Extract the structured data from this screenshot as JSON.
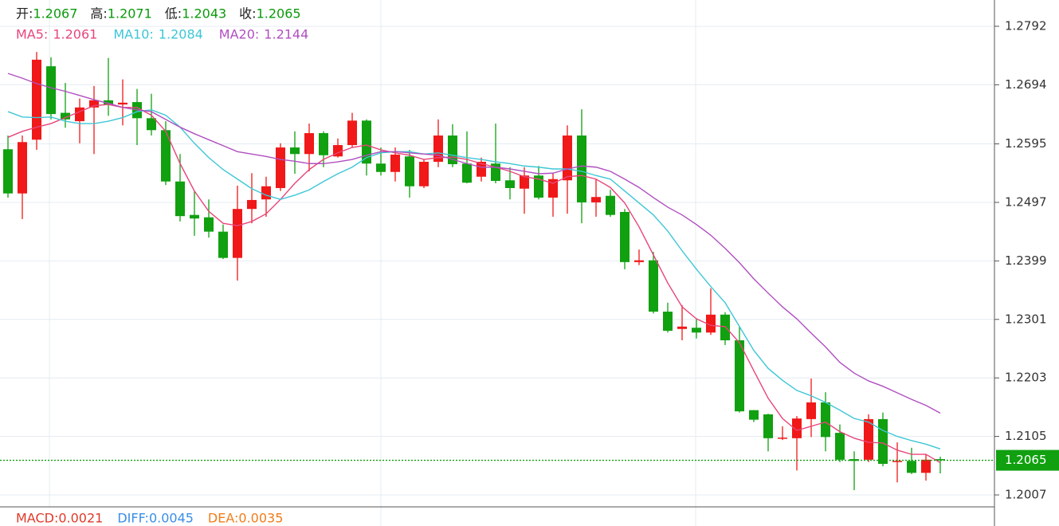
{
  "chart_data": {
    "type": "candlestick",
    "open": [
      1.2586,
      1.2512,
      1.2602,
      1.2725,
      1.2647,
      1.2633,
      1.2656,
      1.2668,
      1.2661,
      1.2665,
      1.2638,
      1.2618,
      1.2532,
      1.2476,
      1.2472,
      1.2448,
      1.2404,
      1.2486,
      1.2502,
      1.2521,
      1.2589,
      1.2578,
      1.2613,
      1.2574,
      1.2593,
      1.2634,
      1.2562,
      1.2548,
      1.2574,
      1.2524,
      1.2565,
      1.2609,
      1.2562,
      1.254,
      1.2562,
      1.2534,
      1.252,
      1.2542,
      1.2505,
      1.2534,
      1.2609,
      1.2497,
      1.2508,
      1.2481,
      1.2397,
      1.24,
      1.2314,
      1.2285,
      1.2287,
      1.2279,
      1.2309,
      1.2266,
      1.2149,
      1.2142,
      1.2102,
      1.2102,
      1.2134,
      1.2162,
      1.2111,
      1.2067,
      1.2066,
      1.2134,
      1.2062,
      1.2064,
      1.2044,
      1.2067
    ],
    "high": [
      1.2609,
      1.2609,
      1.2749,
      1.274,
      1.2697,
      1.2671,
      1.2692,
      1.2739,
      1.2703,
      1.2687,
      1.2679,
      1.2633,
      1.2578,
      1.2516,
      1.2502,
      1.246,
      1.2525,
      1.2546,
      1.254,
      1.2596,
      1.2616,
      1.2629,
      1.2616,
      1.2604,
      1.2647,
      1.2636,
      1.2589,
      1.2589,
      1.2585,
      1.2569,
      1.2636,
      1.2628,
      1.2616,
      1.2572,
      1.2629,
      1.2556,
      1.2556,
      1.2558,
      1.2545,
      1.2626,
      1.2653,
      1.2536,
      1.2518,
      1.2486,
      1.2418,
      1.2414,
      1.2329,
      1.2325,
      1.2302,
      1.2353,
      1.2313,
      1.2289,
      1.2149,
      1.2143,
      1.2122,
      1.2139,
      1.2202,
      1.2179,
      1.2125,
      1.208,
      1.2142,
      1.2145,
      1.2095,
      1.2086,
      1.2075,
      1.2071
    ],
    "low": [
      1.2505,
      1.2469,
      1.2585,
      1.2636,
      1.2622,
      1.2596,
      1.2578,
      1.2642,
      1.2626,
      1.2593,
      1.2609,
      1.2526,
      1.2465,
      1.2441,
      1.2438,
      1.2402,
      1.2366,
      1.2462,
      1.2473,
      1.2516,
      1.2545,
      1.2549,
      1.2556,
      1.2572,
      1.2589,
      1.2542,
      1.2542,
      1.2532,
      1.2505,
      1.2521,
      1.2556,
      1.2556,
      1.2529,
      1.2532,
      1.2529,
      1.2502,
      1.2478,
      1.2502,
      1.2473,
      1.2478,
      1.2462,
      1.2473,
      1.2473,
      1.2385,
      1.2392,
      1.2311,
      1.2279,
      1.2266,
      1.2269,
      1.2275,
      1.2258,
      1.2145,
      1.2129,
      1.208,
      1.2099,
      1.2048,
      1.2104,
      1.208,
      1.2062,
      1.2015,
      1.2062,
      1.2055,
      1.2028,
      1.2042,
      1.2031,
      1.2043
    ],
    "close": [
      1.2512,
      1.2598,
      1.2736,
      1.2645,
      1.2636,
      1.2656,
      1.2668,
      1.2661,
      1.2664,
      1.2638,
      1.2618,
      1.2532,
      1.2474,
      1.247,
      1.2448,
      1.2404,
      1.2486,
      1.2501,
      1.2524,
      1.2589,
      1.2578,
      1.2613,
      1.2576,
      1.2593,
      1.2634,
      1.2562,
      1.2548,
      1.2577,
      1.2524,
      1.2565,
      1.2609,
      1.2561,
      1.253,
      1.2565,
      1.2533,
      1.2521,
      1.2542,
      1.2505,
      1.2536,
      1.2609,
      1.2497,
      1.2506,
      1.2476,
      1.2397,
      1.24,
      1.2314,
      1.2282,
      1.2289,
      1.2279,
      1.2309,
      1.2266,
      1.2147,
      1.2133,
      1.2102,
      1.2103,
      1.2135,
      1.2162,
      1.2104,
      1.2066,
      1.2064,
      1.2134,
      1.2059,
      1.2064,
      1.2044,
      1.2066,
      1.2065
    ],
    "up_color": "#f01818",
    "down_color": "#10a010",
    "series": [
      {
        "name": "MA5:",
        "value": 1.2061,
        "color": "#e8457a",
        "values": [
          1.2606,
          1.2616,
          1.2623,
          1.2629,
          1.2639,
          1.2649,
          1.2659,
          1.2661,
          1.2656,
          1.2656,
          1.2643,
          1.2616,
          1.2562,
          1.2516,
          1.2482,
          1.2462,
          1.2458,
          1.2465,
          1.2478,
          1.2502,
          1.2529,
          1.2552,
          1.2569,
          1.258,
          1.2589,
          1.2593,
          1.2585,
          1.258,
          1.2576,
          1.2569,
          1.2572,
          1.2573,
          1.2569,
          1.2562,
          1.2556,
          1.2549,
          1.254,
          1.2536,
          1.2529,
          1.254,
          1.2542,
          1.2536,
          1.2522,
          1.2496,
          1.2456,
          1.2409,
          1.2362,
          1.2322,
          1.2302,
          1.2291,
          1.2289,
          1.2262,
          1.2215,
          1.2169,
          1.2135,
          1.2115,
          1.2122,
          1.2129,
          1.2113,
          1.2102,
          1.2095,
          1.2094,
          1.2082,
          1.2075,
          1.2075,
          1.2061
        ]
      },
      {
        "name": "MA10:",
        "value": 1.2084,
        "color": "#3ec6d6",
        "values": [
          1.2649,
          1.264,
          1.2639,
          1.264,
          1.2633,
          1.2629,
          1.2629,
          1.2633,
          1.2639,
          1.2649,
          1.2652,
          1.2643,
          1.2623,
          1.2596,
          1.2572,
          1.2552,
          1.2536,
          1.252,
          1.2509,
          1.2502,
          1.2509,
          1.2518,
          1.2532,
          1.2545,
          1.2556,
          1.2572,
          1.258,
          1.2582,
          1.2582,
          1.2578,
          1.258,
          1.2576,
          1.2572,
          1.2569,
          1.2565,
          1.2562,
          1.2558,
          1.2556,
          1.2553,
          1.2553,
          1.2549,
          1.2542,
          1.2536,
          1.2516,
          1.2496,
          1.2476,
          1.2449,
          1.2416,
          1.2385,
          1.2356,
          1.2329,
          1.2289,
          1.2249,
          1.2219,
          1.2199,
          1.2182,
          1.2173,
          1.2162,
          1.2149,
          1.2135,
          1.2129,
          1.2115,
          1.2105,
          1.2098,
          1.2092,
          1.2084
        ]
      },
      {
        "name": "MA20:",
        "value": 1.2144,
        "color": "#b04fc0",
        "values": [
          1.2713,
          1.2705,
          1.2696,
          1.2689,
          1.2683,
          1.2676,
          1.2669,
          1.2663,
          1.2656,
          1.2652,
          1.2649,
          1.2636,
          1.2623,
          1.2612,
          1.2602,
          1.2592,
          1.2582,
          1.2578,
          1.2574,
          1.2569,
          1.2566,
          1.2562,
          1.2562,
          1.2565,
          1.2569,
          1.2576,
          1.2582,
          1.2582,
          1.258,
          1.2578,
          1.2576,
          1.2569,
          1.2562,
          1.2556,
          1.2556,
          1.2553,
          1.2549,
          1.2545,
          1.2546,
          1.2553,
          1.2558,
          1.2556,
          1.2549,
          1.2536,
          1.2522,
          1.2505,
          1.2489,
          1.2476,
          1.246,
          1.2442,
          1.242,
          1.2396,
          1.2369,
          1.2345,
          1.2322,
          1.2302,
          1.2278,
          1.2255,
          1.2229,
          1.2211,
          1.2198,
          1.2189,
          1.2178,
          1.2167,
          1.2157,
          1.2144
        ]
      }
    ],
    "quote": [
      {
        "label": "开:",
        "value": 1.2067
      },
      {
        "label": "高:",
        "value": 1.2071
      },
      {
        "label": "低:",
        "value": 1.2043
      },
      {
        "label": "收:",
        "value": 1.2065
      }
    ],
    "quote_color": "#0a9a0a",
    "last_price": 1.2065,
    "last_price_color": "#10a010",
    "indicator": [
      {
        "label": "MACD:",
        "value": 0.0021,
        "color": "#e03a2a"
      },
      {
        "label": "DIFF:",
        "value": 0.0045,
        "color": "#3a8ee6"
      },
      {
        "label": "DEA:",
        "value": 0.0035,
        "color": "#f07d1a"
      }
    ],
    "ylim": [
      1.1987,
      1.2836
    ],
    "yticks": [
      1.2007,
      1.2105,
      1.2203,
      1.2301,
      1.2399,
      1.2497,
      1.2595,
      1.2694,
      1.2792
    ],
    "grid": true
  }
}
